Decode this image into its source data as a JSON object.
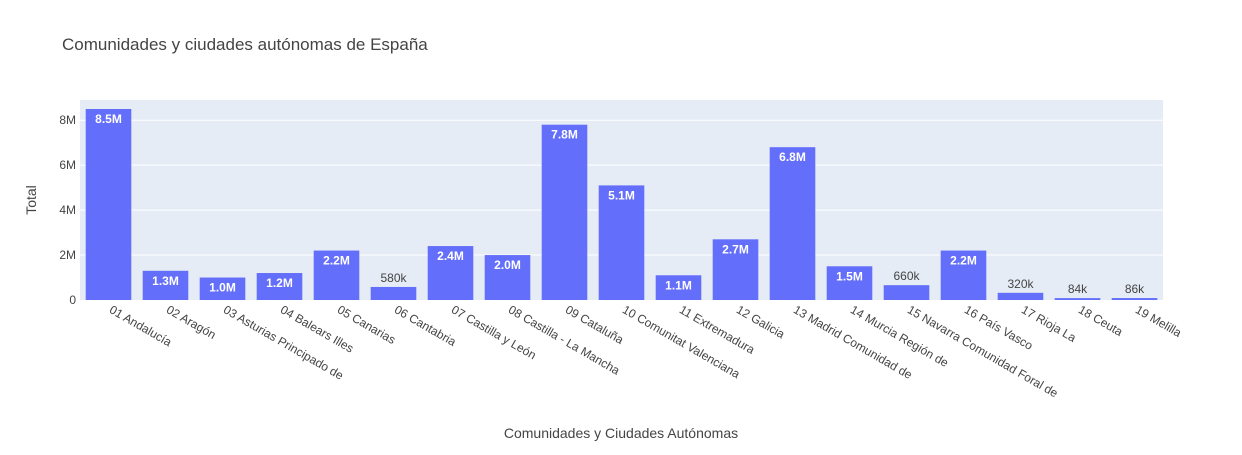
{
  "chart_data": {
    "type": "bar",
    "title": "Comunidades y ciudades autónomas de España",
    "xlabel": "Comunidades y Ciudades Autónomas",
    "ylabel": "Total",
    "ylim": [
      0,
      8900000
    ],
    "yticks": [
      0,
      2000000,
      4000000,
      6000000,
      8000000
    ],
    "ytick_labels": [
      "0",
      "2M",
      "4M",
      "6M",
      "8M"
    ],
    "grid": true,
    "colors": {
      "bar": "#636efa",
      "plot_bg": "#e5ecf6",
      "grid": "#ffffff",
      "text": "#444444"
    },
    "categories": [
      "01 Andalucía",
      "02 Aragón",
      "03 Asturias  Principado de",
      "04 Balears  Illes",
      "05 Canarias",
      "06 Cantabria",
      "07 Castilla y León",
      "08 Castilla - La Mancha",
      "09 Cataluña",
      "10 Comunitat Valenciana",
      "11 Extremadura",
      "12 Galicia",
      "13 Madrid  Comunidad de",
      "14 Murcia  Región de",
      "15 Navarra  Comunidad Foral de",
      "16 País Vasco",
      "17 Rioja  La",
      "18 Ceuta",
      "19 Melilla"
    ],
    "values": [
      8500000,
      1300000,
      1000000,
      1200000,
      2200000,
      580000,
      2400000,
      2000000,
      7800000,
      5100000,
      1100000,
      2700000,
      6800000,
      1500000,
      660000,
      2200000,
      320000,
      84000,
      86000
    ],
    "data_labels": [
      "8.5M",
      "1.3M",
      "1.0M",
      "1.2M",
      "2.2M",
      "580k",
      "2.4M",
      "2.0M",
      "7.8M",
      "5.1M",
      "1.1M",
      "2.7M",
      "6.8M",
      "1.5M",
      "660k",
      "2.2M",
      "320k",
      "84k",
      "86k"
    ]
  }
}
